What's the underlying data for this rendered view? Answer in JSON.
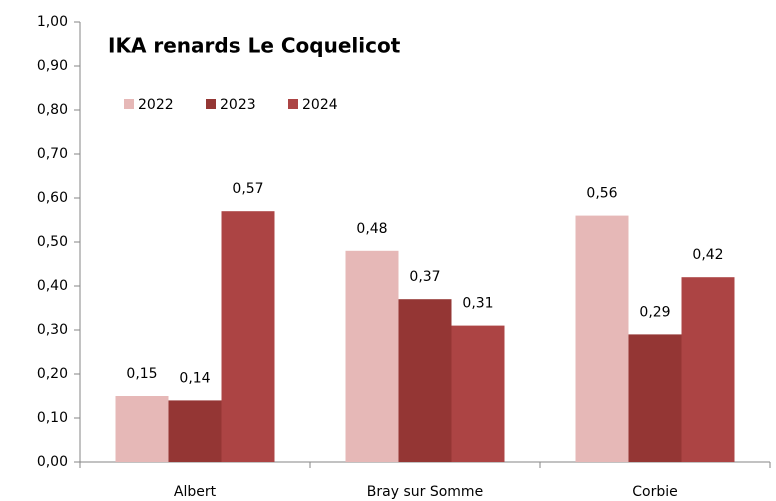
{
  "chart_data": {
    "type": "bar",
    "title": "IKA renards Le Coquelicot",
    "categories": [
      "Albert",
      "Bray sur Somme",
      "Corbie"
    ],
    "series": [
      {
        "name": "2022",
        "color": "#e6b8b7",
        "values": [
          0.15,
          0.48,
          0.56
        ],
        "value_labels": [
          "0,15",
          "0,48",
          "0,56"
        ]
      },
      {
        "name": "2023",
        "color": "#943634",
        "values": [
          0.14,
          0.37,
          0.29
        ],
        "value_labels": [
          "0,14",
          "0,37",
          "0,29"
        ]
      },
      {
        "name": "2024",
        "color": "#ac4444",
        "values": [
          0.57,
          0.31,
          0.42
        ],
        "value_labels": [
          "0,57",
          "0,31",
          "0,42"
        ]
      }
    ],
    "ylim": [
      0,
      1
    ],
    "yticks": [
      {
        "value": 0,
        "label": "0,00"
      },
      {
        "value": 0.1,
        "label": "0,10"
      },
      {
        "value": 0.2,
        "label": "0,20"
      },
      {
        "value": 0.3,
        "label": "0,30"
      },
      {
        "value": 0.4,
        "label": "0,40"
      },
      {
        "value": 0.5,
        "label": "0,50"
      },
      {
        "value": 0.6,
        "label": "0,60"
      },
      {
        "value": 0.7,
        "label": "0,70"
      },
      {
        "value": 0.8,
        "label": "0,80"
      },
      {
        "value": 0.9,
        "label": "0,90"
      },
      {
        "value": 1,
        "label": "1,00"
      }
    ],
    "legend": "top-left",
    "grid": false
  }
}
